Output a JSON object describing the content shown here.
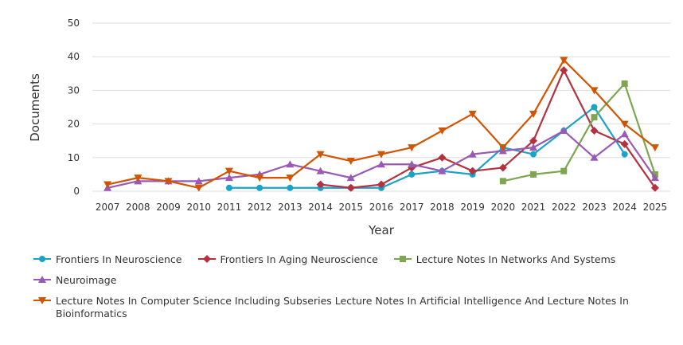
{
  "chart_data": {
    "type": "line",
    "title": "",
    "xlabel": "Year",
    "ylabel": "Documents",
    "ylim": [
      0,
      50
    ],
    "yticks": [
      0,
      10,
      20,
      30,
      40,
      50
    ],
    "x": [
      "2007",
      "2008",
      "2009",
      "2010",
      "2011",
      "2012",
      "2013",
      "2014",
      "2015",
      "2016",
      "2017",
      "2018",
      "2019",
      "2020",
      "2021",
      "2022",
      "2023",
      "2024",
      "2025"
    ],
    "legend_position": "bottom",
    "series": [
      {
        "name": "Frontiers In Neuroscience",
        "color": "#1aa3c8",
        "marker": "circle",
        "values": [
          null,
          null,
          null,
          null,
          1,
          1,
          1,
          1,
          1,
          1,
          5,
          6,
          5,
          13,
          11,
          18,
          25,
          11,
          null
        ]
      },
      {
        "name": "Frontiers In Aging Neuroscience",
        "color": "#b5313d",
        "marker": "diamond",
        "values": [
          null,
          null,
          null,
          null,
          null,
          null,
          null,
          2,
          1,
          2,
          7,
          10,
          6,
          7,
          15,
          36,
          18,
          14,
          1
        ]
      },
      {
        "name": "Lecture Notes In Networks And Systems",
        "color": "#7ea651",
        "marker": "square",
        "values": [
          null,
          null,
          null,
          null,
          null,
          null,
          null,
          null,
          null,
          null,
          null,
          null,
          null,
          3,
          5,
          6,
          22,
          32,
          5
        ]
      },
      {
        "name": "Neuroimage",
        "color": "#9b59b6",
        "marker": "triangle-up",
        "values": [
          1,
          3,
          3,
          3,
          4,
          5,
          8,
          6,
          4,
          8,
          8,
          6,
          11,
          12,
          13,
          18,
          10,
          17,
          4
        ]
      },
      {
        "name": "Lecture Notes In Computer Science Including Subseries Lecture Notes In Artificial Intelligence And Lecture Notes In Bioinformatics",
        "color": "#d35400",
        "marker": "triangle-down",
        "values": [
          2,
          4,
          3,
          1,
          6,
          4,
          4,
          11,
          9,
          11,
          13,
          18,
          23,
          13,
          23,
          39,
          30,
          20,
          13
        ]
      }
    ]
  }
}
